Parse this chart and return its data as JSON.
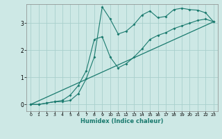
{
  "xlabel": "Humidex (Indice chaleur)",
  "bg_color": "#cde8e5",
  "grid_color": "#a8d0cc",
  "line_color": "#1a7a6e",
  "xlim": [
    -0.5,
    23.5
  ],
  "ylim": [
    -0.25,
    3.7
  ],
  "xticks": [
    0,
    1,
    2,
    3,
    4,
    5,
    6,
    7,
    8,
    9,
    10,
    11,
    12,
    13,
    14,
    15,
    16,
    17,
    18,
    19,
    20,
    21,
    22,
    23
  ],
  "yticks": [
    0,
    1,
    2,
    3
  ],
  "line1_x": [
    0,
    1,
    2,
    3,
    4,
    5,
    6,
    7,
    8,
    9,
    10,
    11,
    12,
    13,
    14,
    15,
    16,
    17,
    18,
    19,
    20,
    21,
    22,
    23
  ],
  "line1_y": [
    0.0,
    0.0,
    0.05,
    0.1,
    0.1,
    0.15,
    0.4,
    0.95,
    1.75,
    3.6,
    3.15,
    2.6,
    2.7,
    2.95,
    3.3,
    3.45,
    3.2,
    3.25,
    3.5,
    3.55,
    3.5,
    3.48,
    3.38,
    3.05
  ],
  "line2_x": [
    0,
    1,
    2,
    3,
    4,
    5,
    6,
    7,
    8,
    9,
    10,
    11,
    12,
    13,
    14,
    15,
    16,
    17,
    18,
    19,
    20,
    21,
    22,
    23
  ],
  "line2_y": [
    0.0,
    0.0,
    0.05,
    0.1,
    0.15,
    0.35,
    0.7,
    1.25,
    2.4,
    2.5,
    1.75,
    1.35,
    1.5,
    1.75,
    2.05,
    2.4,
    2.55,
    2.65,
    2.8,
    2.9,
    3.0,
    3.1,
    3.15,
    3.05
  ],
  "line3_x": [
    0,
    23
  ],
  "line3_y": [
    0.0,
    3.05
  ]
}
